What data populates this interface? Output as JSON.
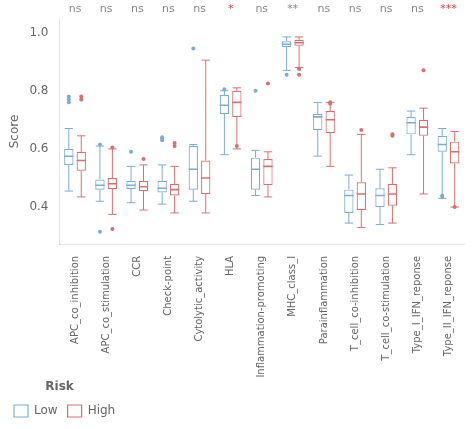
{
  "chart_data": {
    "type": "box",
    "ylabel": "Score",
    "categories": [
      "APC_co_inhibition",
      "APC_co_stimulation",
      "CCR",
      "Check-point",
      "Cytolytic_activity",
      "HLA",
      "Inflammation-promoting",
      "MHC_class_I",
      "Parainflammation",
      "T_cell_co-inhibition",
      "T_cell_co-stimulation",
      "Type_I_IFN_reponse",
      "Type_II_IFN_reponse"
    ],
    "series": [
      {
        "name": "Low",
        "color": "#7badd4",
        "boxes": [
          {
            "med": 0.575,
            "q1": 0.545,
            "q3": 0.6,
            "whislo": 0.455,
            "whishi": 0.67,
            "fliers": [
              0.76,
              0.77,
              0.78
            ]
          },
          {
            "med": 0.475,
            "q1": 0.46,
            "q3": 0.495,
            "whislo": 0.42,
            "whishi": 0.61,
            "fliers": [
              0.315,
              0.615
            ]
          },
          {
            "med": 0.475,
            "q1": 0.462,
            "q3": 0.49,
            "whislo": 0.415,
            "whishi": 0.54,
            "fliers": [
              0.59
            ]
          },
          {
            "med": 0.465,
            "q1": 0.45,
            "q3": 0.49,
            "whislo": 0.41,
            "whishi": 0.545,
            "fliers": [
              0.63,
              0.635,
              0.64
            ]
          },
          {
            "med": 0.53,
            "q1": 0.46,
            "q3": 0.61,
            "whislo": 0.42,
            "whishi": 0.615,
            "fliers": [
              0.945
            ]
          },
          {
            "med": 0.75,
            "q1": 0.72,
            "q3": 0.785,
            "whislo": 0.58,
            "whishi": 0.8,
            "fliers": [
              0.805
            ]
          },
          {
            "med": 0.53,
            "q1": 0.46,
            "q3": 0.57,
            "whislo": 0.44,
            "whishi": 0.595,
            "fliers": [
              0.8
            ]
          },
          {
            "med": 0.96,
            "q1": 0.95,
            "q3": 0.97,
            "whislo": 0.87,
            "whishi": 0.985,
            "fliers": [
              0.855
            ]
          },
          {
            "med": 0.71,
            "q1": 0.665,
            "q3": 0.72,
            "whislo": 0.575,
            "whishi": 0.76,
            "fliers": []
          },
          {
            "med": 0.44,
            "q1": 0.38,
            "q3": 0.46,
            "whislo": 0.345,
            "whishi": 0.51,
            "fliers": []
          },
          {
            "med": 0.44,
            "q1": 0.4,
            "q3": 0.465,
            "whislo": 0.34,
            "whishi": 0.53,
            "fliers": []
          },
          {
            "med": 0.69,
            "q1": 0.65,
            "q3": 0.71,
            "whislo": 0.58,
            "whishi": 0.73,
            "fliers": []
          },
          {
            "med": 0.615,
            "q1": 0.59,
            "q3": 0.645,
            "whislo": 0.43,
            "whishi": 0.67,
            "fliers": [
              0.435,
              0.44
            ]
          }
        ]
      },
      {
        "name": "High",
        "color": "#d97070",
        "boxes": [
          {
            "med": 0.56,
            "q1": 0.525,
            "q3": 0.59,
            "whislo": 0.435,
            "whishi": 0.645,
            "fliers": [
              0.77,
              0.78
            ]
          },
          {
            "med": 0.48,
            "q1": 0.462,
            "q3": 0.5,
            "whislo": 0.375,
            "whishi": 0.6,
            "fliers": [
              0.325,
              0.605
            ]
          },
          {
            "med": 0.47,
            "q1": 0.455,
            "q3": 0.49,
            "whislo": 0.39,
            "whishi": 0.545,
            "fliers": [
              0.565
            ]
          },
          {
            "med": 0.46,
            "q1": 0.44,
            "q3": 0.48,
            "whislo": 0.38,
            "whishi": 0.54,
            "fliers": [
              0.61,
              0.62
            ]
          },
          {
            "med": 0.5,
            "q1": 0.445,
            "q3": 0.56,
            "whislo": 0.38,
            "whishi": 0.905,
            "fliers": []
          },
          {
            "med": 0.76,
            "q1": 0.71,
            "q3": 0.8,
            "whislo": 0.6,
            "whishi": 0.81,
            "fliers": [
              0.61
            ]
          },
          {
            "med": 0.54,
            "q1": 0.475,
            "q3": 0.565,
            "whislo": 0.435,
            "whishi": 0.59,
            "fliers": [
              0.825
            ]
          },
          {
            "med": 0.965,
            "q1": 0.955,
            "q3": 0.975,
            "whislo": 0.88,
            "whishi": 0.985,
            "fliers": [
              0.855,
              0.875
            ]
          },
          {
            "med": 0.7,
            "q1": 0.655,
            "q3": 0.73,
            "whislo": 0.54,
            "whishi": 0.76,
            "fliers": [
              0.755,
              0.76
            ]
          },
          {
            "med": 0.445,
            "q1": 0.39,
            "q3": 0.485,
            "whislo": 0.33,
            "whishi": 0.65,
            "fliers": [
              0.665
            ]
          },
          {
            "med": 0.445,
            "q1": 0.405,
            "q3": 0.48,
            "whislo": 0.345,
            "whishi": 0.535,
            "fliers": [
              0.645,
              0.65
            ]
          },
          {
            "med": 0.675,
            "q1": 0.645,
            "q3": 0.7,
            "whislo": 0.445,
            "whishi": 0.74,
            "fliers": [
              0.87
            ]
          },
          {
            "med": 0.59,
            "q1": 0.55,
            "q3": 0.625,
            "whislo": 0.4,
            "whishi": 0.66,
            "fliers": [
              0.4
            ]
          }
        ]
      }
    ],
    "annotations": [
      {
        "text": "ns",
        "color": "#888888",
        "category": "APC_co_inhibition"
      },
      {
        "text": "ns",
        "color": "#888888",
        "category": "APC_co_stimulation"
      },
      {
        "text": "ns",
        "color": "#888888",
        "category": "CCR"
      },
      {
        "text": "ns",
        "color": "#888888",
        "category": "Check-point"
      },
      {
        "text": "ns",
        "color": "#888888",
        "category": "Cytolytic_activity"
      },
      {
        "text": "*",
        "color": "#cc4444",
        "category": "HLA"
      },
      {
        "text": "ns",
        "color": "#888888",
        "category": "Inflammation-promoting"
      },
      {
        "text": "**",
        "color": "#888888",
        "category": "MHC_class_I"
      },
      {
        "text": "ns",
        "color": "#888888",
        "category": "Parainflammation"
      },
      {
        "text": "ns",
        "color": "#888888",
        "category": "T_cell_co-inhibition"
      },
      {
        "text": "ns",
        "color": "#888888",
        "category": "T_cell_co-stimulation"
      },
      {
        "text": "ns",
        "color": "#888888",
        "category": "Type_I_IFN_reponse"
      },
      {
        "text": "***",
        "color": "#cc4444",
        "category": "Type_II_IFN_reponse"
      }
    ],
    "legend_title": "Risk",
    "legend": "bottom",
    "ylim": [
      0.27,
      1.05
    ],
    "yticks": [
      0.4,
      0.6,
      0.8,
      {
        "value": 1.0,
        "label": "1.0"
      }
    ],
    "grid": false
  }
}
